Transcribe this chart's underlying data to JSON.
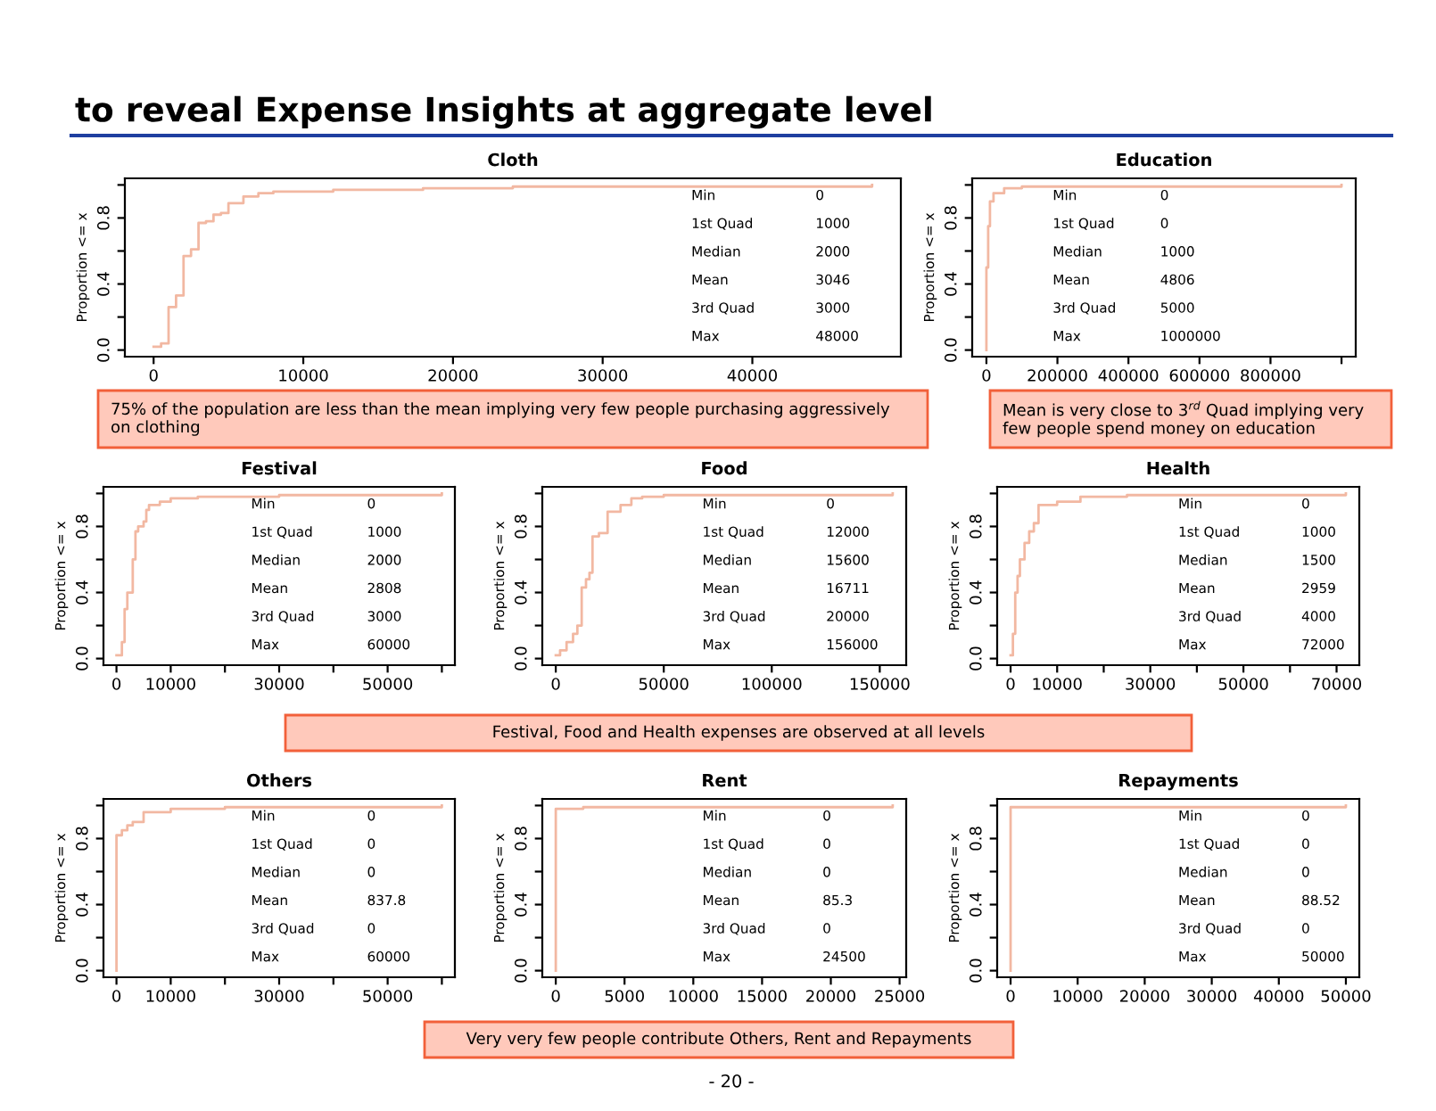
{
  "chart_data": [
    {
      "type": "step",
      "title": "Cloth",
      "subtitle": "to reveal Expense Insights at aggregate level",
      "ylabel": "Proportion <= x",
      "color": "#f2b8a2",
      "x": [
        0,
        500,
        1000,
        1500,
        2000,
        2500,
        3000,
        3500,
        4000,
        4500,
        5000,
        6000,
        7000,
        8000,
        10000,
        12000,
        18000,
        24000,
        48000
      ],
      "values": [
        0.02,
        0.04,
        0.26,
        0.33,
        0.57,
        0.61,
        0.77,
        0.78,
        0.82,
        0.83,
        0.89,
        0.93,
        0.95,
        0.96,
        0.96,
        0.97,
        0.98,
        0.99,
        1.0
      ],
      "xlim": [
        -1920,
        49920
      ],
      "xticks": [
        0,
        10000,
        20000,
        30000,
        40000
      ],
      "ylim": [
        -0.04,
        1.04
      ],
      "yticks": [
        {
          "value": 0,
          "label": "0.0"
        },
        {
          "value": 0.2,
          "label": null
        },
        {
          "value": 0.4,
          "label": "0.4"
        },
        {
          "value": 0.6,
          "label": null
        },
        {
          "value": 0.8,
          "label": "0.8"
        },
        {
          "value": 1.0,
          "label": null
        }
      ],
      "annotations": [
        "Min",
        "0",
        "1st Quad",
        "1000",
        "Median",
        "2000",
        "Mean",
        "3046",
        "3rd Quad",
        "3000",
        "Max",
        "48000",
        "75% of the population are less than the mean implying very few people purchasing aggressively on clothing"
      ]
    },
    {
      "type": "step",
      "title": "Education",
      "ylabel": "Proportion <= x",
      "color": "#f2b8a2",
      "x": [
        0,
        0,
        5000,
        10000,
        20000,
        50000,
        100000,
        1000000
      ],
      "values": [
        0,
        0.5,
        0.75,
        0.9,
        0.95,
        0.98,
        0.99,
        1.0
      ],
      "xlim": [
        -40000,
        1040000
      ],
      "xticks": [
        0,
        200000,
        400000,
        600000,
        800000,
        {
          "value": 1000000,
          "label": null
        }
      ],
      "ylim": [
        -0.04,
        1.04
      ],
      "yticks": [
        {
          "value": 0,
          "label": "0.0"
        },
        {
          "value": 0.2,
          "label": null
        },
        {
          "value": 0.4,
          "label": "0.4"
        },
        {
          "value": 0.6,
          "label": null
        },
        {
          "value": 0.8,
          "label": "0.8"
        },
        {
          "value": 1.0,
          "label": null
        }
      ],
      "annotations": [
        "Min",
        "0",
        "1st Quad",
        "0",
        "Median",
        "1000",
        "Mean",
        "4806",
        "3rd Quad",
        "5000",
        "Max",
        "1000000",
        "Mean is very close to 3$^{rd}$ Quad implying very few people spend money on education"
      ]
    },
    {
      "type": "step",
      "title": "Festival",
      "ylabel": "Proportion <= x",
      "color": "#f2b8a2",
      "x": [
        0,
        1000,
        1500,
        2000,
        3000,
        3500,
        4000,
        5000,
        5500,
        6000,
        8000,
        10000,
        15000,
        30000,
        60000
      ],
      "values": [
        0.02,
        0.1,
        0.3,
        0.4,
        0.6,
        0.77,
        0.8,
        0.83,
        0.9,
        0.93,
        0.95,
        0.97,
        0.98,
        0.99,
        1.0
      ],
      "xlim": [
        -2400,
        62400
      ],
      "xticks": [
        0,
        10000,
        {
          "value": 20000,
          "label": null
        },
        30000,
        {
          "value": 40000,
          "label": null
        },
        50000,
        {
          "value": 60000,
          "label": null
        }
      ],
      "ylim": [
        -0.04,
        1.04
      ],
      "yticks": [
        {
          "value": 0,
          "label": "0.0"
        },
        {
          "value": 0.2,
          "label": null
        },
        {
          "value": 0.4,
          "label": "0.4"
        },
        {
          "value": 0.6,
          "label": null
        },
        {
          "value": 0.8,
          "label": "0.8"
        },
        {
          "value": 1.0,
          "label": null
        }
      ],
      "annotations": [
        "Min",
        "0",
        "1st Quad",
        "1000",
        "Median",
        "2000",
        "Mean",
        "2808",
        "3rd Quad",
        "3000",
        "Max",
        "60000"
      ]
    },
    {
      "type": "step",
      "title": "Food",
      "ylabel": "Proportion <= x",
      "color": "#f2b8a2",
      "x": [
        0,
        2000,
        5000,
        8000,
        10000,
        12000,
        14000,
        15600,
        17000,
        20000,
        24000,
        30000,
        35000,
        40000,
        50000,
        70000,
        156000
      ],
      "values": [
        0.02,
        0.05,
        0.1,
        0.15,
        0.2,
        0.43,
        0.48,
        0.52,
        0.74,
        0.76,
        0.89,
        0.93,
        0.97,
        0.98,
        0.99,
        0.99,
        1.0
      ],
      "xlim": [
        -6240,
        162240
      ],
      "xticks": [
        0,
        50000,
        100000,
        150000
      ],
      "ylim": [
        -0.04,
        1.04
      ],
      "yticks": [
        {
          "value": 0,
          "label": "0.0"
        },
        {
          "value": 0.2,
          "label": null
        },
        {
          "value": 0.4,
          "label": "0.4"
        },
        {
          "value": 0.6,
          "label": null
        },
        {
          "value": 0.8,
          "label": "0.8"
        },
        {
          "value": 1.0,
          "label": null
        }
      ],
      "annotations": [
        "Min",
        "0",
        "1st Quad",
        "12000",
        "Median",
        "15600",
        "Mean",
        "16711",
        "3rd Quad",
        "20000",
        "Max",
        "156000",
        "Festival, Food and Health expenses are observed at all levels"
      ]
    },
    {
      "type": "step",
      "title": "Health",
      "ylabel": "Proportion <= x",
      "color": "#f2b8a2",
      "x": [
        0,
        500,
        1000,
        1500,
        2000,
        3000,
        4000,
        5000,
        6000,
        10000,
        15000,
        25000,
        72000
      ],
      "values": [
        0.02,
        0.15,
        0.4,
        0.5,
        0.6,
        0.7,
        0.77,
        0.82,
        0.93,
        0.95,
        0.98,
        0.99,
        1.0
      ],
      "xlim": [
        -2880,
        74880
      ],
      "xticks": [
        0,
        10000,
        {
          "value": 20000,
          "label": null
        },
        30000,
        {
          "value": 40000,
          "label": null
        },
        50000,
        {
          "value": 60000,
          "label": null
        },
        70000
      ],
      "ylim": [
        -0.04,
        1.04
      ],
      "yticks": [
        {
          "value": 0,
          "label": "0.0"
        },
        {
          "value": 0.2,
          "label": null
        },
        {
          "value": 0.4,
          "label": "0.4"
        },
        {
          "value": 0.6,
          "label": null
        },
        {
          "value": 0.8,
          "label": "0.8"
        },
        {
          "value": 1.0,
          "label": null
        }
      ],
      "annotations": [
        "Min",
        "0",
        "1st Quad",
        "1000",
        "Median",
        "1500",
        "Mean",
        "2959",
        "3rd Quad",
        "4000",
        "Max",
        "72000"
      ]
    },
    {
      "type": "step",
      "title": "Others",
      "ylabel": "Proportion <= x",
      "color": "#f2b8a2",
      "x": [
        0,
        0,
        1000,
        2000,
        3000,
        5000,
        10000,
        20000,
        60000
      ],
      "values": [
        0,
        0.82,
        0.85,
        0.88,
        0.9,
        0.96,
        0.98,
        0.99,
        1.0
      ],
      "xlim": [
        -2400,
        62400
      ],
      "xticks": [
        0,
        10000,
        {
          "value": 20000,
          "label": null
        },
        30000,
        {
          "value": 40000,
          "label": null
        },
        50000,
        {
          "value": 60000,
          "label": null
        }
      ],
      "ylim": [
        -0.04,
        1.04
      ],
      "yticks": [
        {
          "value": 0,
          "label": "0.0"
        },
        {
          "value": 0.2,
          "label": null
        },
        {
          "value": 0.4,
          "label": "0.4"
        },
        {
          "value": 0.6,
          "label": null
        },
        {
          "value": 0.8,
          "label": "0.8"
        },
        {
          "value": 1.0,
          "label": null
        }
      ],
      "annotations": [
        "Min",
        "0",
        "1st Quad",
        "0",
        "Median",
        "0",
        "Mean",
        "837.8",
        "3rd Quad",
        "0",
        "Max",
        "60000"
      ]
    },
    {
      "type": "step",
      "title": "Rent",
      "ylabel": "Proportion <= x",
      "color": "#f2b8a2",
      "x": [
        0,
        0,
        2000,
        24500
      ],
      "values": [
        0,
        0.98,
        0.99,
        1.0
      ],
      "xlim": [
        -980,
        25480
      ],
      "xticks": [
        0,
        5000,
        10000,
        15000,
        20000,
        25000
      ],
      "ylim": [
        -0.04,
        1.04
      ],
      "yticks": [
        {
          "value": 0,
          "label": "0.0"
        },
        {
          "value": 0.2,
          "label": null
        },
        {
          "value": 0.4,
          "label": "0.4"
        },
        {
          "value": 0.6,
          "label": null
        },
        {
          "value": 0.8,
          "label": "0.8"
        },
        {
          "value": 1.0,
          "label": null
        }
      ],
      "annotations": [
        "Min",
        "0",
        "1st Quad",
        "0",
        "Median",
        "0",
        "Mean",
        "85.3",
        "3rd Quad",
        "0",
        "Max",
        "24500",
        "Very very few people contribute Others, Rent and Repayments",
        "- 20 -"
      ]
    },
    {
      "type": "step",
      "title": "Repayments",
      "ylabel": "Proportion <= x",
      "color": "#f2b8a2",
      "x": [
        0,
        0,
        50000
      ],
      "values": [
        0,
        0.99,
        1.0
      ],
      "xlim": [
        -2000,
        52000
      ],
      "xticks": [
        0,
        10000,
        20000,
        30000,
        40000,
        50000
      ],
      "ylim": [
        -0.04,
        1.04
      ],
      "yticks": [
        {
          "value": 0,
          "label": "0.0"
        },
        {
          "value": 0.2,
          "label": null
        },
        {
          "value": 0.4,
          "label": "0.4"
        },
        {
          "value": 0.6,
          "label": null
        },
        {
          "value": 0.8,
          "label": "0.8"
        },
        {
          "value": 1.0,
          "label": null
        }
      ],
      "annotations": [
        "Min",
        "0",
        "1st Quad",
        "0",
        "Median",
        "0",
        "Mean",
        "88.52",
        "3rd Quad",
        "0",
        "Max",
        "50000"
      ]
    }
  ]
}
